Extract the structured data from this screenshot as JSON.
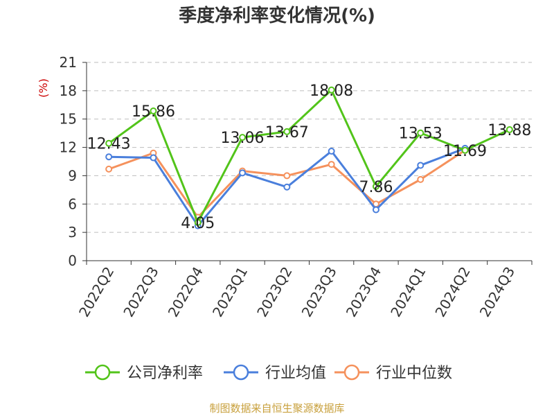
{
  "chart_data": {
    "type": "line",
    "title": "季度净利率变化情况(%)",
    "ylabel": "(%)",
    "xlabel": "",
    "ylim": [
      0,
      21
    ],
    "yticks": [
      0,
      3,
      6,
      9,
      12,
      15,
      18,
      21
    ],
    "grid": true,
    "legend_position": "bottom",
    "categories": [
      "2022Q2",
      "2022Q3",
      "2022Q4",
      "2023Q1",
      "2023Q2",
      "2023Q3",
      "2023Q4",
      "2024Q1",
      "2024Q2",
      "2024Q3"
    ],
    "series": [
      {
        "name": "公司净利率",
        "color": "#52c41a",
        "labeled": true,
        "values": [
          12.43,
          15.86,
          4.05,
          13.06,
          13.67,
          18.08,
          7.86,
          13.53,
          11.69,
          13.88
        ]
      },
      {
        "name": "行业均值",
        "color": "#4a7fdc",
        "labeled": false,
        "values": [
          11.0,
          10.9,
          3.7,
          9.3,
          7.8,
          11.6,
          5.4,
          10.1,
          11.9,
          null
        ]
      },
      {
        "name": "行业中位数",
        "color": "#f5915c",
        "labeled": false,
        "values": [
          9.7,
          11.4,
          4.6,
          9.5,
          9.0,
          10.2,
          6.0,
          8.6,
          11.7,
          null
        ]
      }
    ]
  },
  "footer": "制图数据来自恒生聚源数据库"
}
